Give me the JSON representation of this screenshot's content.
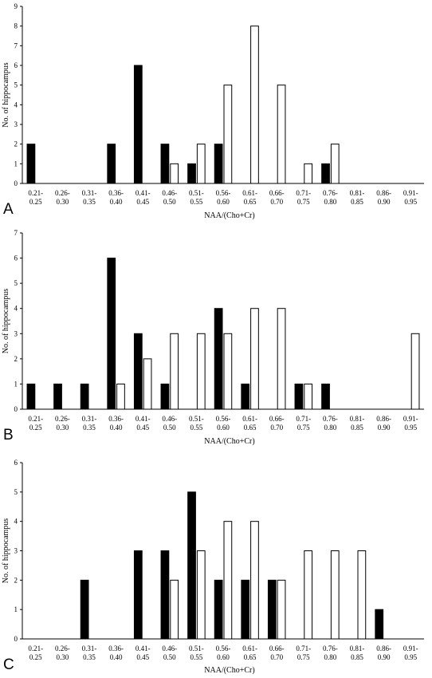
{
  "chart_data": [
    {
      "type": "bar",
      "panel_label": "A",
      "categories": [
        "0.21-\n0.25",
        "0.26-\n0.30",
        "0.31-\n0.35",
        "0.36-\n0.40",
        "0.41-\n0.45",
        "0.46-\n0.50",
        "0.51-\n0.55",
        "0.56-\n0.60",
        "0.61-\n0.65",
        "0.66-\n0.70",
        "0.71-\n0.75",
        "0.76-\n0.80",
        "0.81-\n0.85",
        "0.86-\n0.90",
        "0.91-\n0.95"
      ],
      "series": [
        {
          "fill": "#000000",
          "values": [
            2,
            0,
            0,
            2,
            6,
            2,
            1,
            2,
            0,
            0,
            0,
            1,
            0,
            0,
            0
          ]
        },
        {
          "fill": "#ffffff",
          "values": [
            0,
            0,
            0,
            0,
            0,
            1,
            2,
            5,
            8,
            5,
            1,
            2,
            0,
            0,
            0
          ]
        }
      ],
      "xlabel": "NAA/(Cho+Cr)",
      "ylabel": "No. of hippocampus",
      "ylim": [
        0,
        9
      ],
      "yticks": [
        0,
        1,
        2,
        3,
        4,
        5,
        6,
        7,
        8,
        9
      ],
      "grid": false
    },
    {
      "type": "bar",
      "panel_label": "B",
      "categories": [
        "0.21-\n0.25",
        "0.26-\n0.30",
        "0.31-\n0.35",
        "0.36-\n0.40",
        "0.41-\n0.45",
        "0.46-\n0.50",
        "0.51-\n0.55",
        "0.56-\n0.60",
        "0.61-\n0.65",
        "0.66-\n0.70",
        "0.71-\n0.75",
        "0.76-\n0.80",
        "0.81-\n0.85",
        "0.86-\n0.90",
        "0.91-\n0.95"
      ],
      "series": [
        {
          "fill": "#000000",
          "values": [
            1,
            1,
            1,
            6,
            3,
            1,
            0,
            4,
            1,
            0,
            1,
            1,
            0,
            0,
            0
          ]
        },
        {
          "fill": "#ffffff",
          "values": [
            0,
            0,
            0,
            1,
            2,
            3,
            3,
            3,
            4,
            4,
            1,
            0,
            0,
            0,
            3
          ]
        }
      ],
      "xlabel": "NAA/(Cho+Cr)",
      "ylabel": "No. of hippocampus",
      "ylim": [
        0,
        7
      ],
      "yticks": [
        0,
        1,
        2,
        3,
        4,
        5,
        6,
        7
      ],
      "grid": false
    },
    {
      "type": "bar",
      "panel_label": "C",
      "categories": [
        "0.21-\n0.25",
        "0.26-\n0.30",
        "0.31-\n0.35",
        "0.36-\n0.40",
        "0.41-\n0.45",
        "0.46-\n0.50",
        "0.51-\n0.55",
        "0.56-\n0.60",
        "0.61-\n0.65",
        "0.66-\n0.70",
        "0.71-\n0.75",
        "0.76-\n0.80",
        "0.81-\n0.85",
        "0.86-\n0.90",
        "0.91-\n0.95"
      ],
      "series": [
        {
          "fill": "#000000",
          "values": [
            0,
            0,
            2,
            0,
            3,
            3,
            5,
            2,
            2,
            2,
            0,
            0,
            0,
            1,
            0
          ]
        },
        {
          "fill": "#ffffff",
          "values": [
            0,
            0,
            0,
            0,
            0,
            2,
            3,
            4,
            4,
            2,
            3,
            3,
            3,
            0,
            0
          ]
        }
      ],
      "xlabel": "NAA/(Cho+Cr)",
      "ylabel": "No. of hippocampus",
      "ylim": [
        0,
        6
      ],
      "yticks": [
        0,
        1,
        2,
        3,
        4,
        5,
        6
      ],
      "grid": false
    }
  ]
}
